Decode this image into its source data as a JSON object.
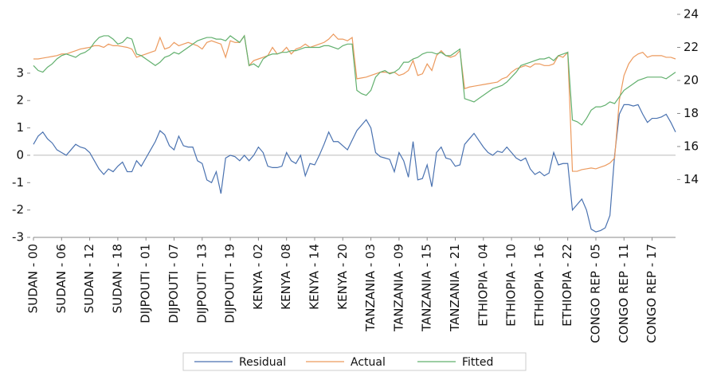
{
  "chart_data": {
    "type": "line",
    "categories": [
      "SUDAN - 00",
      null,
      null,
      null,
      null,
      null,
      "SUDAN - 06",
      null,
      null,
      null,
      null,
      null,
      "SUDAN - 12",
      null,
      null,
      null,
      null,
      null,
      "SUDAN - 18",
      null,
      null,
      null,
      null,
      null,
      "DIJPOUTI - 01",
      null,
      null,
      null,
      null,
      null,
      "DIJPOUTI - 07",
      null,
      null,
      null,
      null,
      null,
      "DIJPOUTI - 13",
      null,
      null,
      null,
      null,
      null,
      "DIJPOUTI - 19",
      null,
      null,
      null,
      null,
      null,
      "KENYA - 02",
      null,
      null,
      null,
      null,
      null,
      "KENYA - 08",
      null,
      null,
      null,
      null,
      null,
      "KENYA - 14",
      null,
      null,
      null,
      null,
      null,
      "KENYA - 20",
      null,
      null,
      null,
      null,
      null,
      "TANZANIA - 03",
      null,
      null,
      null,
      null,
      null,
      "TANZANIA - 09",
      null,
      null,
      null,
      null,
      null,
      "TANZANIA - 15",
      null,
      null,
      null,
      null,
      null,
      "TANZANIA - 21",
      null,
      null,
      null,
      null,
      null,
      "ETHIOPIA - 04",
      null,
      null,
      null,
      null,
      null,
      "ETHIOPIA - 10",
      null,
      null,
      null,
      null,
      null,
      "ETHIOPIA - 16",
      null,
      null,
      null,
      null,
      null,
      "ETHIOPIA - 22",
      null,
      null,
      null,
      null,
      null,
      "CONGO REP - 05",
      null,
      null,
      null,
      null,
      null,
      "CONGO REP - 11",
      null,
      null,
      null,
      null,
      null,
      "CONGO REP - 17",
      null,
      null,
      null,
      null,
      null
    ],
    "series": [
      {
        "name": "Residual",
        "color": "#4a72b0",
        "axis": "y",
        "values": [
          0.4,
          0.7,
          0.85,
          0.6,
          0.45,
          0.2,
          0.1,
          0,
          0.2,
          0.4,
          0.3,
          0.25,
          0.1,
          -0.2,
          -0.5,
          -0.7,
          -0.5,
          -0.6,
          -0.4,
          -0.25,
          -0.6,
          -0.6,
          -0.2,
          -0.4,
          -0.1,
          0.2,
          0.5,
          0.9,
          0.75,
          0.35,
          0.2,
          0.7,
          0.35,
          0.3,
          0.3,
          -0.2,
          -0.3,
          -0.9,
          -1.0,
          -0.6,
          -1.4,
          -0.1,
          0,
          -0.05,
          -0.2,
          0,
          -0.2,
          0,
          0.3,
          0.1,
          -0.4,
          -0.45,
          -0.45,
          -0.4,
          0.1,
          -0.2,
          -0.3,
          0,
          -0.75,
          -0.3,
          -0.35,
          0,
          0.4,
          0.85,
          0.5,
          0.5,
          0.35,
          0.2,
          0.55,
          0.9,
          1.1,
          1.3,
          1.0,
          0.1,
          -0.05,
          -0.1,
          -0.15,
          -0.6,
          0.1,
          -0.2,
          -0.8,
          0.5,
          -0.9,
          -0.85,
          -0.35,
          -1.15,
          0.1,
          0.3,
          -0.1,
          -0.15,
          -0.4,
          -0.35,
          0.4,
          0.6,
          0.8,
          0.55,
          0.3,
          0.1,
          0,
          0.15,
          0.1,
          0.3,
          0.1,
          -0.1,
          -0.2,
          -0.1,
          -0.5,
          -0.7,
          -0.6,
          -0.75,
          -0.65,
          0.1,
          -0.35,
          -0.3,
          -0.3,
          -2.0,
          -1.8,
          -1.6,
          -2.0,
          -2.7,
          -2.8,
          -2.75,
          -2.65,
          -2.2,
          0,
          1.5,
          1.85,
          1.85,
          1.8,
          1.85,
          1.5,
          1.2,
          1.35,
          1.35,
          1.4,
          1.5,
          1.2,
          0.85
        ]
      },
      {
        "name": "Actual",
        "color": "#ec9a5e",
        "axis": "y2",
        "values": [
          21.3,
          21.3,
          21.35,
          21.4,
          21.45,
          21.5,
          21.6,
          21.6,
          21.7,
          21.8,
          21.9,
          21.95,
          22.0,
          22.1,
          22.1,
          22.0,
          22.2,
          22.1,
          22.1,
          22.05,
          22.0,
          21.9,
          21.4,
          21.5,
          21.6,
          21.7,
          21.8,
          22.6,
          21.9,
          22.0,
          22.3,
          22.1,
          22.2,
          22.3,
          22.2,
          22.1,
          21.9,
          22.3,
          22.4,
          22.3,
          22.2,
          21.4,
          22.4,
          22.3,
          22.3,
          22.7,
          20.9,
          21.2,
          21.3,
          21.4,
          21.5,
          22.0,
          21.6,
          21.7,
          22.0,
          21.6,
          21.9,
          22.0,
          22.2,
          22.0,
          22.1,
          22.2,
          22.3,
          22.5,
          22.8,
          22.5,
          22.5,
          22.4,
          22.6,
          20.1,
          20.15,
          20.2,
          20.3,
          20.4,
          20.5,
          20.5,
          20.45,
          20.5,
          20.3,
          20.4,
          20.6,
          21.2,
          20.3,
          20.4,
          21.0,
          20.6,
          21.5,
          21.8,
          21.5,
          21.4,
          21.5,
          21.8,
          19.5,
          19.6,
          19.65,
          19.7,
          19.75,
          19.8,
          19.85,
          19.9,
          20.1,
          20.2,
          20.5,
          20.7,
          20.8,
          20.9,
          20.8,
          21.0,
          21.0,
          20.9,
          20.9,
          21.0,
          21.5,
          21.4,
          21.7,
          14.5,
          14.5,
          14.6,
          14.65,
          14.7,
          14.65,
          14.75,
          14.85,
          15.0,
          15.3,
          18.8,
          20.3,
          21.0,
          21.4,
          21.6,
          21.7,
          21.4,
          21.5,
          21.5,
          21.5,
          21.4,
          21.4,
          21.3
        ]
      },
      {
        "name": "Fitted",
        "color": "#62b06e",
        "axis": "y2",
        "values": [
          20.9,
          20.6,
          20.5,
          20.8,
          21.0,
          21.3,
          21.5,
          21.6,
          21.5,
          21.4,
          21.6,
          21.7,
          21.9,
          22.3,
          22.6,
          22.7,
          22.7,
          22.5,
          22.2,
          22.3,
          22.6,
          22.5,
          21.6,
          21.5,
          21.3,
          21.1,
          20.9,
          21.1,
          21.4,
          21.5,
          21.7,
          21.6,
          21.8,
          22.0,
          22.2,
          22.4,
          22.5,
          22.6,
          22.6,
          22.5,
          22.5,
          22.4,
          22.7,
          22.5,
          22.3,
          22.7,
          20.9,
          21.0,
          20.8,
          21.3,
          21.5,
          21.6,
          21.6,
          21.7,
          21.7,
          21.8,
          21.8,
          21.9,
          22.0,
          22.0,
          22.0,
          22.0,
          22.1,
          22.1,
          22.0,
          21.9,
          22.1,
          22.2,
          22.2,
          19.4,
          19.2,
          19.1,
          19.4,
          20.2,
          20.5,
          20.6,
          20.4,
          20.5,
          20.7,
          21.1,
          21.1,
          21.3,
          21.4,
          21.6,
          21.7,
          21.7,
          21.6,
          21.7,
          21.5,
          21.5,
          21.7,
          21.9,
          18.9,
          18.8,
          18.7,
          18.9,
          19.1,
          19.3,
          19.5,
          19.6,
          19.7,
          19.9,
          20.2,
          20.5,
          20.9,
          21.0,
          21.1,
          21.2,
          21.3,
          21.3,
          21.4,
          21.2,
          21.5,
          21.6,
          21.7,
          17.6,
          17.5,
          17.3,
          17.7,
          18.2,
          18.4,
          18.4,
          18.5,
          18.7,
          18.6,
          19.0,
          19.4,
          19.6,
          19.8,
          20.0,
          20.1,
          20.2,
          20.2,
          20.2,
          20.2,
          20.1,
          20.3,
          20.5
        ]
      }
    ],
    "ylim": [
      -3,
      5.15
    ],
    "yticks": [
      -3,
      -2,
      -1,
      0,
      1,
      2,
      3
    ],
    "y2lim": [
      10.5,
      24
    ],
    "y2ticks": [
      14,
      16,
      18,
      20,
      22,
      24
    ],
    "legend": "bottom"
  }
}
